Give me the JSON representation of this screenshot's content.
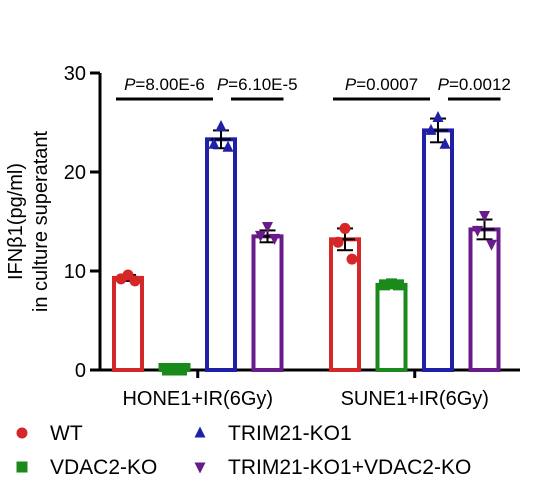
{
  "chart_data": {
    "type": "bar",
    "ylabel": [
      "IFNβ1(pg/ml)",
      "in culture superatant"
    ],
    "ylim": [
      0,
      30
    ],
    "yticks": [
      0,
      10,
      20,
      30
    ],
    "categories": [
      "HONE1+IR(6Gy)",
      "SUNE1+IR(6Gy)"
    ],
    "series": [
      {
        "name": "WT",
        "color": "#d62728",
        "marker": "circle",
        "values": [
          9.3,
          13.2
        ],
        "errors": [
          0.3,
          1.1
        ],
        "points": [
          [
            9.6,
            9.2,
            9.0
          ],
          [
            14.3,
            12.9,
            11.2
          ]
        ]
      },
      {
        "name": "VDAC2-KO",
        "color": "#1a8a1a",
        "marker": "square",
        "values": [
          0.0,
          8.6
        ],
        "errors": [
          0.0,
          0.2
        ],
        "points": [
          [
            0.0,
            0.0,
            0.0
          ],
          [
            8.7,
            8.6,
            8.6
          ]
        ]
      },
      {
        "name": "TRIM21-KO1",
        "color": "#1f1fa8",
        "marker": "triangle-up",
        "values": [
          23.3,
          24.2
        ],
        "errors": [
          0.9,
          1.2
        ],
        "points": [
          [
            24.6,
            22.8,
            22.5
          ],
          [
            25.5,
            24.2,
            22.8
          ]
        ]
      },
      {
        "name": "TRIM21-KO1+VDAC2-KO",
        "color": "#6a1b8a",
        "marker": "triangle-down",
        "values": [
          13.5,
          14.2
        ],
        "errors": [
          0.6,
          1.0
        ],
        "points": [
          [
            14.5,
            13.6,
            13.3
          ],
          [
            15.6,
            14.1,
            12.7
          ]
        ]
      }
    ],
    "annotations": [
      {
        "group": 0,
        "from": 0,
        "to": 2,
        "label_p": "P",
        "label_v": "=8.00E-6"
      },
      {
        "group": 0,
        "from": 2,
        "to": 3,
        "label_p": "P",
        "label_v": "=6.10E-5"
      },
      {
        "group": 1,
        "from": 0,
        "to": 2,
        "label_p": "P",
        "label_v": "=0.0007"
      },
      {
        "group": 1,
        "from": 2,
        "to": 3,
        "label_p": "P",
        "label_v": "=0.0012"
      }
    ],
    "legend_position": "bottom"
  }
}
